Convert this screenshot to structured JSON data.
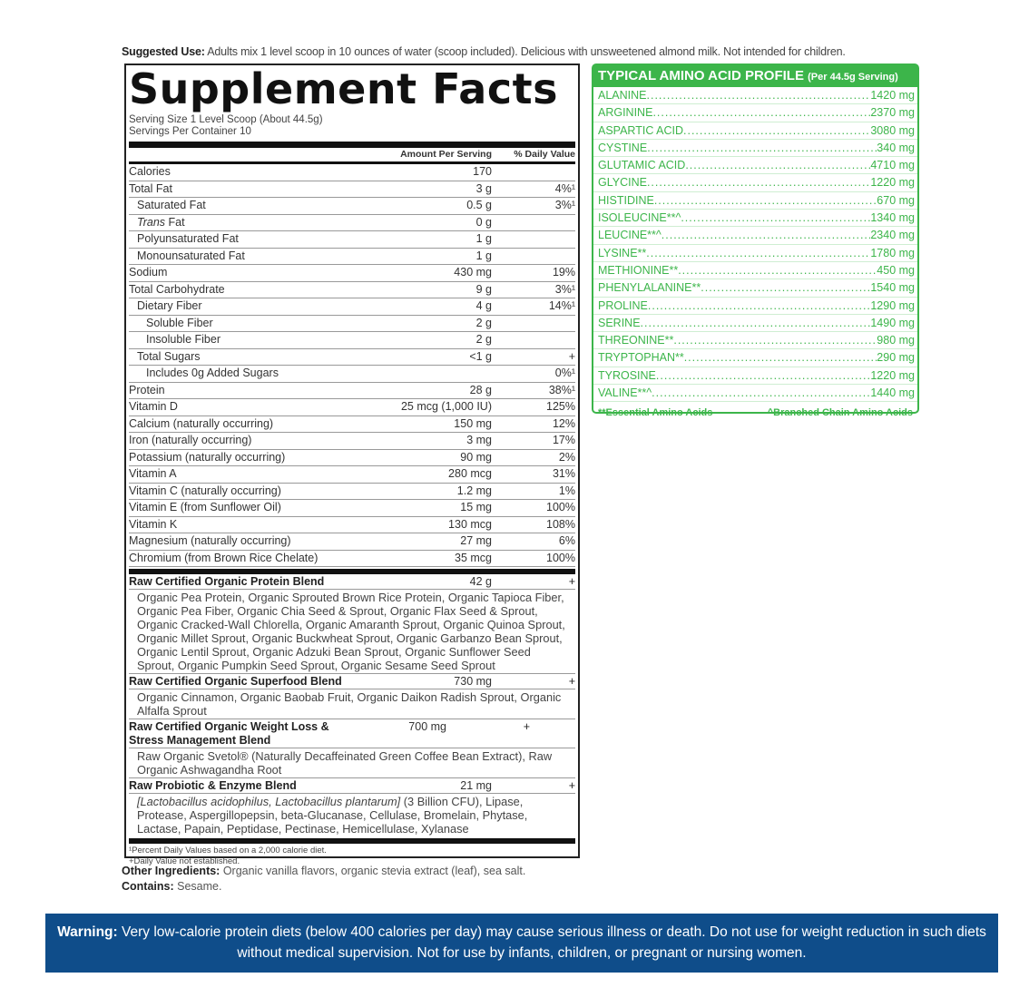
{
  "suggested_use": {
    "label": "Suggested Use:",
    "text": " Adults mix 1 level scoop in 10 ounces of water (scoop included). Delicious with unsweetened almond milk. Not intended for children."
  },
  "facts": {
    "title": "Supplement Facts",
    "serving_size": "Serving Size 1 Level Scoop (About 44.5g)",
    "servings_per_container": "Servings Per Container 10",
    "col_amount": "Amount Per Serving",
    "col_dv": "% Daily Value",
    "rows": [
      {
        "label": "Calories",
        "amount": "170",
        "dv": "",
        "level": 0
      },
      {
        "label": "Total Fat",
        "amount": "3 g",
        "dv": "4%¹",
        "level": 0
      },
      {
        "label": "Saturated Fat",
        "amount": "0.5 g",
        "dv": "3%¹",
        "level": 1
      },
      {
        "italic": "Trans",
        "label": " Fat",
        "amount": "0 g",
        "dv": "",
        "level": 1
      },
      {
        "label": "Polyunsaturated Fat",
        "amount": "1 g",
        "dv": "",
        "level": 1
      },
      {
        "label": "Monounsaturated Fat",
        "amount": "1 g",
        "dv": "",
        "level": 1
      },
      {
        "label": "Sodium",
        "amount": "430 mg",
        "dv": "19%",
        "level": 0
      },
      {
        "label": "Total Carbohydrate",
        "amount": "9 g",
        "dv": "3%¹",
        "level": 0
      },
      {
        "label": "Dietary Fiber",
        "amount": "4 g",
        "dv": "14%¹",
        "level": 1
      },
      {
        "label": "Soluble Fiber",
        "amount": "2 g",
        "dv": "",
        "level": 2
      },
      {
        "label": "Insoluble Fiber",
        "amount": "2 g",
        "dv": "",
        "level": 2
      },
      {
        "label": "Total Sugars",
        "amount": "<1 g",
        "dv": "+",
        "level": 1
      },
      {
        "label": "Includes 0g Added Sugars",
        "amount": "",
        "dv": "0%¹",
        "level": 2
      },
      {
        "label": "Protein",
        "amount": "28 g",
        "dv": "38%¹",
        "level": 0
      },
      {
        "label": "Vitamin D",
        "amount": "25 mcg (1,000 IU)",
        "dv": "125%",
        "level": 0
      },
      {
        "label": "Calcium (naturally occurring)",
        "amount": "150 mg",
        "dv": "12%",
        "level": 0
      },
      {
        "label": "Iron (naturally occurring)",
        "amount": "3 mg",
        "dv": "17%",
        "level": 0
      },
      {
        "label": "Potassium (naturally occurring)",
        "amount": "90 mg",
        "dv": "2%",
        "level": 0
      },
      {
        "label": "Vitamin A",
        "amount": "280 mcg",
        "dv": "31%",
        "level": 0
      },
      {
        "label": "Vitamin C (naturally occurring)",
        "amount": "1.2 mg",
        "dv": "1%",
        "level": 0
      },
      {
        "label": "Vitamin E (from Sunflower Oil)",
        "amount": "15 mg",
        "dv": "100%",
        "level": 0
      },
      {
        "label": "Vitamin K",
        "amount": "130 mcg",
        "dv": "108%",
        "level": 0
      },
      {
        "label": "Magnesium (naturally occurring)",
        "amount": "27 mg",
        "dv": "6%",
        "level": 0
      },
      {
        "label": "Chromium (from Brown Rice Chelate)",
        "amount": "35 mcg",
        "dv": "100%",
        "level": 0
      }
    ],
    "blends": [
      {
        "name": "Raw Certified Organic Protein Blend",
        "amount": "42 g",
        "dv": "+",
        "ingredients": "Organic Pea Protein, Organic Sprouted Brown Rice Protein, Organic Tapioca Fiber, Organic Pea Fiber, Organic Chia Seed & Sprout, Organic Flax Seed & Sprout, Organic Cracked-Wall Chlorella, Organic Amaranth Sprout, Organic Quinoa Sprout, Organic Millet Sprout, Organic Buckwheat Sprout, Organic Garbanzo Bean Sprout, Organic Lentil Sprout, Organic Adzuki Bean Sprout, Organic Sunflower Seed Sprout, Organic Pumpkin Seed Sprout, Organic Sesame Seed Sprout"
      },
      {
        "name": "Raw Certified Organic Superfood Blend",
        "amount": "730 mg",
        "dv": "+",
        "ingredients": "Organic Cinnamon, Organic Baobab Fruit, Organic Daikon Radish Sprout, Organic Alfalfa Sprout"
      },
      {
        "name": "Raw Certified Organic Weight Loss & Stress Management Blend",
        "amount": "700 mg",
        "dv": "+",
        "ingredients": "Raw Organic Svetol® (Naturally Decaffeinated Green Coffee Bean Extract), Raw Organic Ashwagandha Root"
      },
      {
        "name": "Raw Probiotic & Enzyme Blend",
        "amount": "21 mg",
        "dv": "+",
        "ingredients_italic": "[Lactobacillus acidophilus, Lactobacillus plantarum]",
        "ingredients": " (3 Billion CFU), Lipase, Protease, Aspergillopepsin, beta-Glucanase, Cellulase, Bromelain, Phytase, Lactase, Papain, Peptidase, Pectinase, Hemicellulase, Xylanase"
      }
    ],
    "footnote_1": "¹Percent Daily Values based on a 2,000 calorie diet.",
    "footnote_2": "+Daily Value not established."
  },
  "other_ingredients": {
    "label": "Other Ingredients:",
    "text": " Organic vanilla flavors, organic stevia extract (leaf), sea salt."
  },
  "contains": {
    "label": "Contains:",
    "text": " Sesame."
  },
  "amino": {
    "title": "TYPICAL AMINO ACID PROFILE",
    "subtitle": "(Per 44.5g Serving)",
    "color": "#3cb54a",
    "items": [
      {
        "name": "ALANINE",
        "value": "1420 mg"
      },
      {
        "name": "ARGININE",
        "value": "2370 mg"
      },
      {
        "name": "ASPARTIC ACID",
        "value": "3080 mg"
      },
      {
        "name": "CYSTINE",
        "value": "340 mg"
      },
      {
        "name": "GLUTAMIC ACID",
        "value": "4710 mg"
      },
      {
        "name": "GLYCINE",
        "value": "1220 mg"
      },
      {
        "name": "HISTIDINE",
        "value": "670 mg"
      },
      {
        "name": "ISOLEUCINE**^",
        "value": "1340 mg"
      },
      {
        "name": "LEUCINE**^",
        "value": "2340 mg"
      },
      {
        "name": "LYSINE**",
        "value": "1780 mg"
      },
      {
        "name": "METHIONINE**",
        "value": "450 mg"
      },
      {
        "name": "PHENYLALANINE**",
        "value": "1540 mg"
      },
      {
        "name": "PROLINE",
        "value": "1290 mg"
      },
      {
        "name": "SERINE",
        "value": "1490 mg"
      },
      {
        "name": "THREONINE**",
        "value": "980 mg"
      },
      {
        "name": "TRYPTOPHAN**",
        "value": "290 mg"
      },
      {
        "name": "TYROSINE",
        "value": "1220 mg"
      },
      {
        "name": "VALINE**^",
        "value": "1440 mg"
      }
    ],
    "note_essential": "**Essential Amino Acids",
    "note_bcaa": "^Branched Chain Amino Acids"
  },
  "warning": {
    "color": "#0f4d8a",
    "label": "Warning:",
    "text": " Very low-calorie protein diets (below 400 calories per day) may cause serious illness or death. Do not use for weight reduction in such diets without medical supervision. Not for use by infants, children, or pregnant or nursing women."
  }
}
